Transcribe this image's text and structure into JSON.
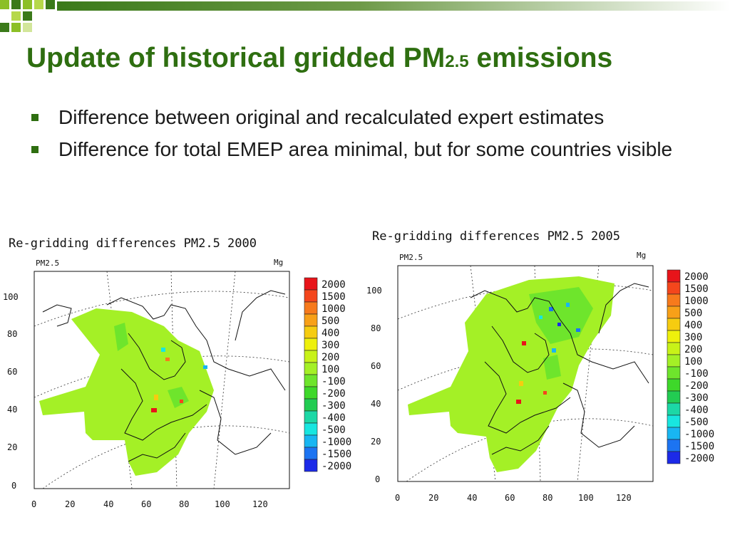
{
  "slide": {
    "title_main": "Update of historical gridded PM",
    "title_sub": "2.5",
    "title_tail": " emissions",
    "bullets": [
      "Difference between original and recalculated expert estimates",
      "Difference for total EMEP area minimal, but for some countries visible"
    ]
  },
  "maps": [
    {
      "title": "Re-gridding differences PM2.5 2000",
      "variable": "PM2.5",
      "unit": "Mg",
      "y_ticks": [
        "100",
        "80",
        "60",
        "40",
        "20",
        "0"
      ],
      "x_ticks": [
        "0",
        "20",
        "40",
        "60",
        "80",
        "100",
        "120"
      ]
    },
    {
      "title": "Re-gridding differences PM2.5 2005",
      "variable": "PM2.5",
      "unit": "Mg",
      "y_ticks": [
        "100",
        "80",
        "60",
        "40",
        "20",
        "0"
      ],
      "x_ticks": [
        "0",
        "20",
        "40",
        "60",
        "80",
        "100",
        "120"
      ]
    }
  ],
  "legend": {
    "labels": [
      "2000",
      "1500",
      "1000",
      "500",
      "400",
      "300",
      "200",
      "100",
      "-100",
      "-200",
      "-300",
      "-400",
      "-500",
      "-1000",
      "-1500",
      "-2000"
    ],
    "colors": [
      "#e8141a",
      "#f4461c",
      "#f77a1c",
      "#f8a018",
      "#f6cc10",
      "#eef00c",
      "#c8f218",
      "#a4f026",
      "#6ee52c",
      "#3ed82a",
      "#22cc52",
      "#1cd8a6",
      "#18e6e0",
      "#18b6f2",
      "#1c74f2",
      "#1c2ae8"
    ]
  },
  "colors": {
    "title": "#2e6e10",
    "bullet": "#2e6e10",
    "land_change": "#a4f026",
    "header_bar_start": "#ffffff",
    "header_bar_end": "#3b7a1a"
  }
}
